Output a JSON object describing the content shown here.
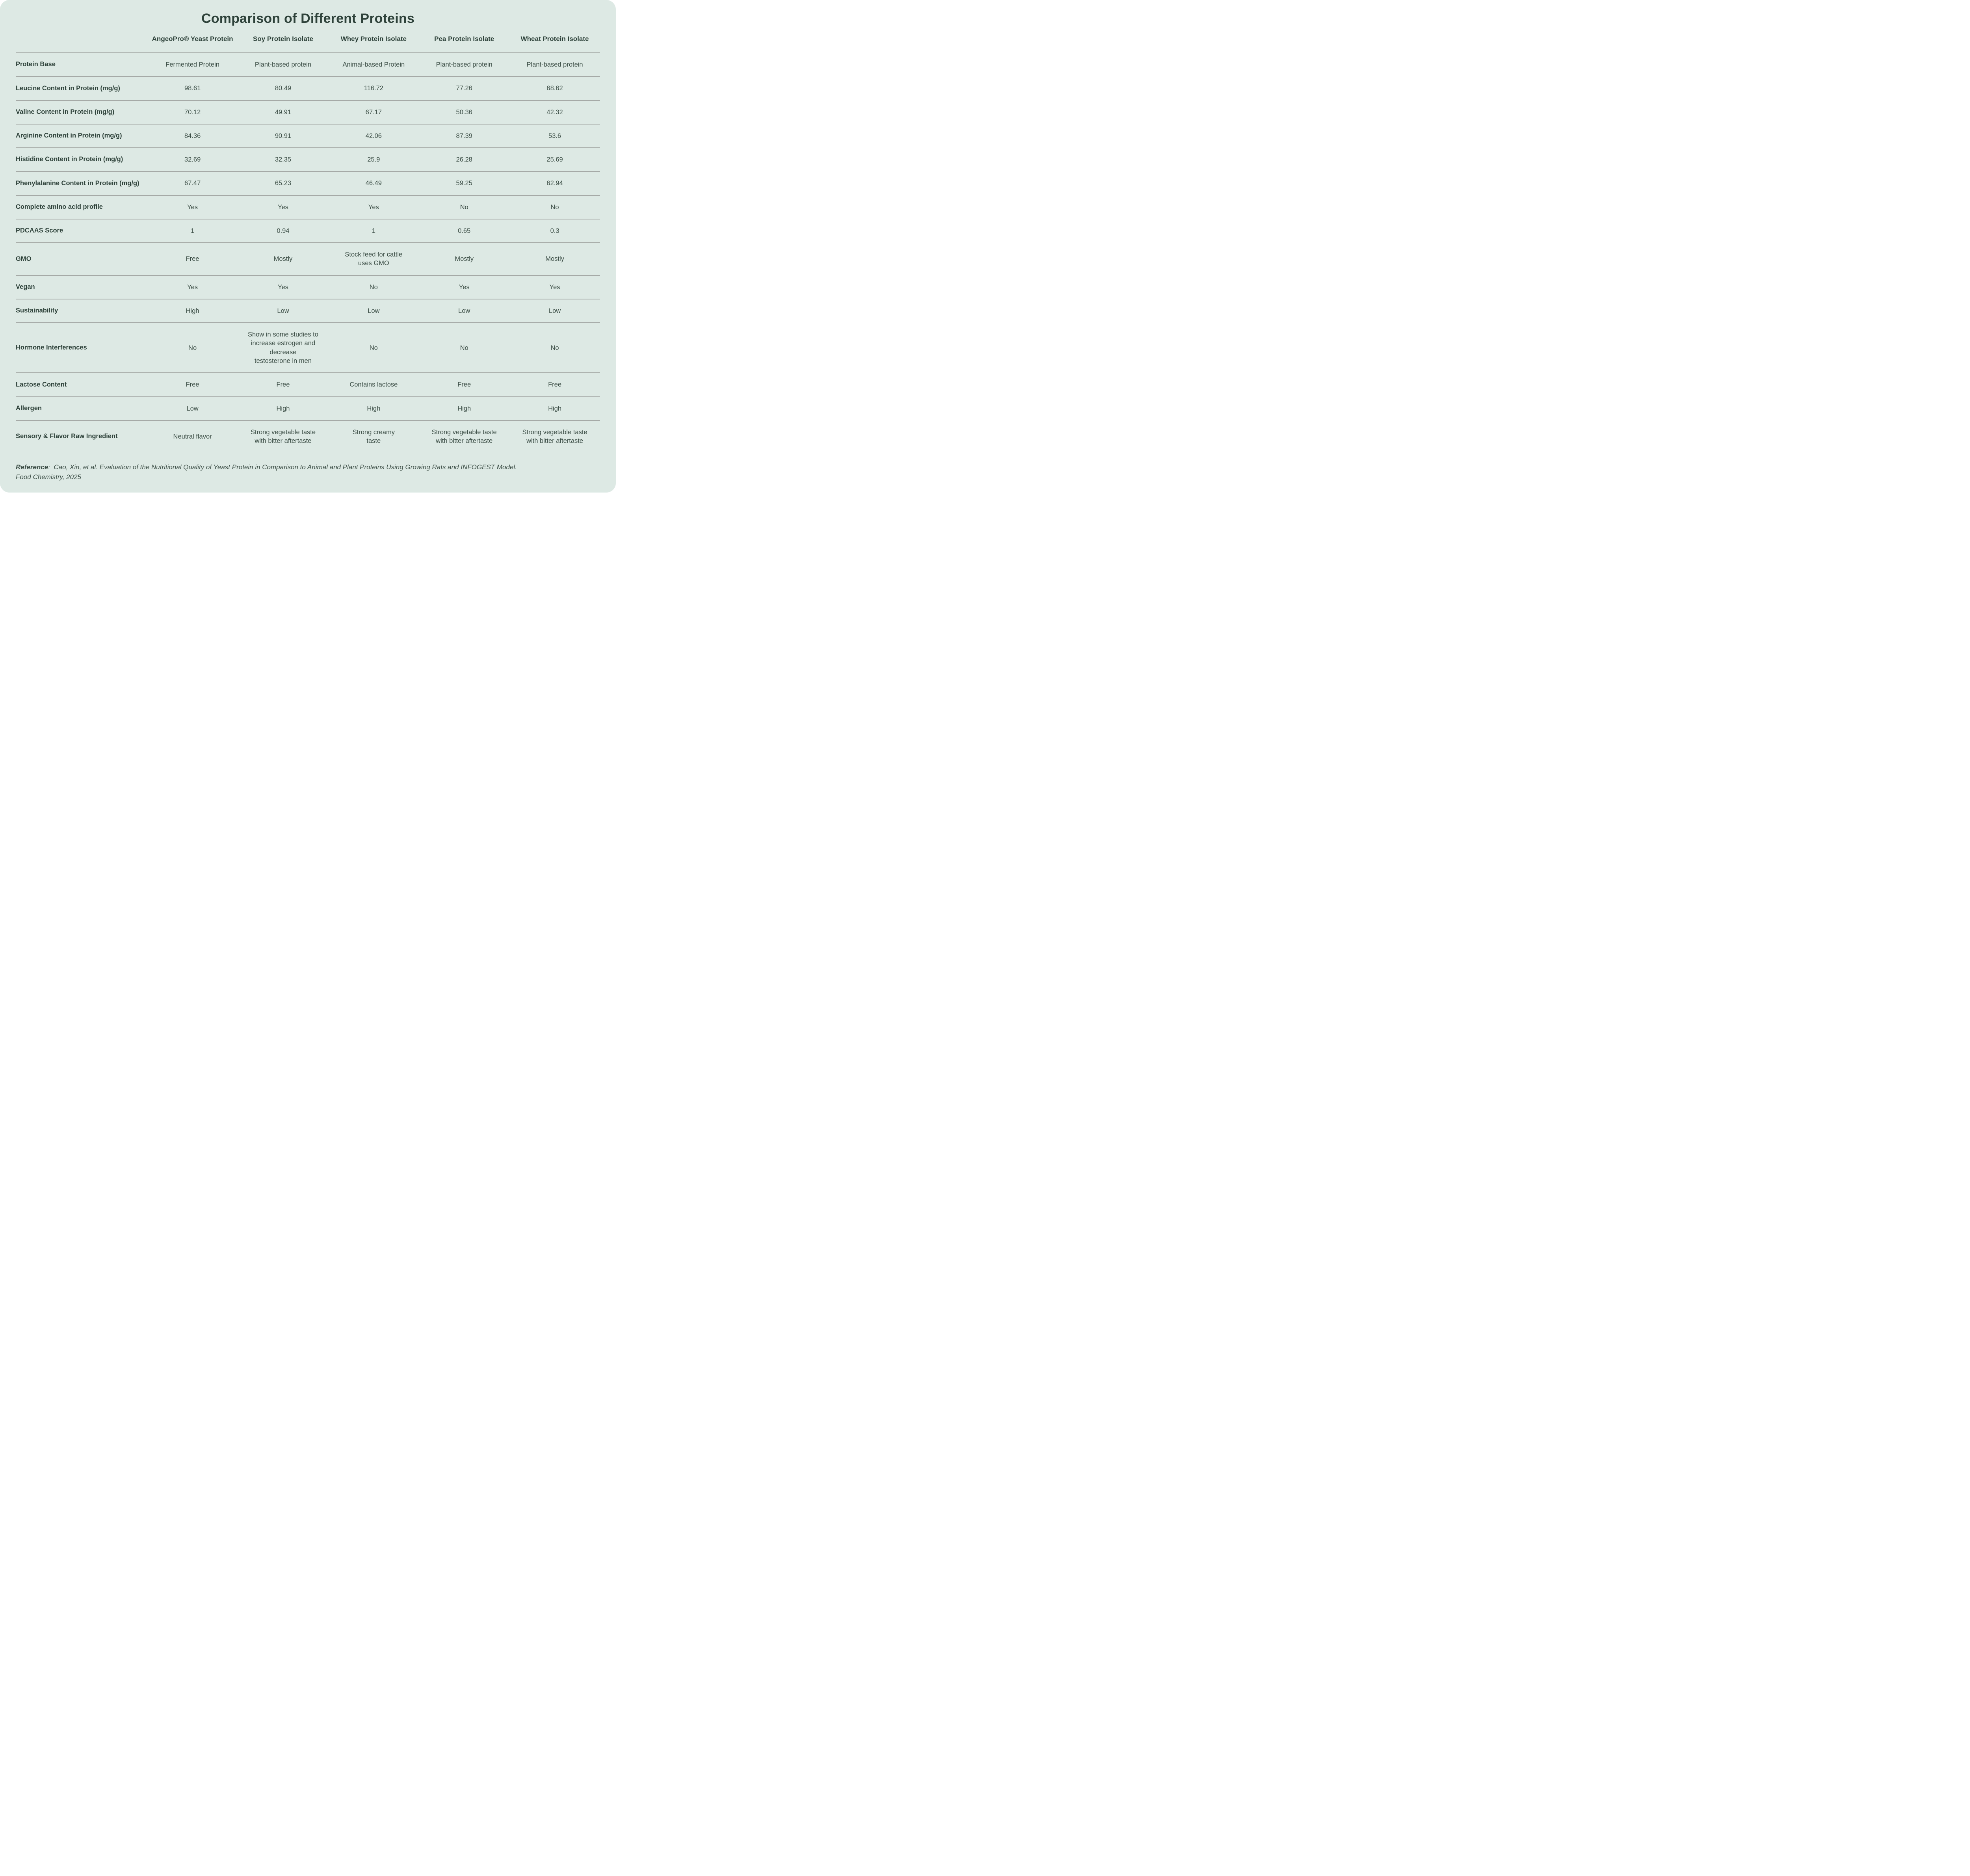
{
  "chart_data": {
    "type": "table",
    "title": "Comparison of Different Proteins",
    "columns": [
      "AngeoPro® Yeast Protein",
      "Soy Protein Isolate",
      "Whey Protein Isolate",
      "Pea Protein Isolate",
      "Wheat Protein Isolate"
    ],
    "rows": [
      {
        "label": "Protein Base",
        "values": [
          "Fermented Protein",
          "Plant-based protein",
          "Animal-based Protein",
          "Plant-based protein",
          "Plant-based protein"
        ]
      },
      {
        "label": "Leucine Content in Protein (mg/g)",
        "values": [
          "98.61",
          "80.49",
          "116.72",
          "77.26",
          "68.62"
        ]
      },
      {
        "label": "Valine Content in Protein (mg/g)",
        "values": [
          "70.12",
          "49.91",
          "67.17",
          "50.36",
          "42.32"
        ]
      },
      {
        "label": "Arginine Content in Protein (mg/g)",
        "values": [
          "84.36",
          "90.91",
          "42.06",
          "87.39",
          "53.6"
        ]
      },
      {
        "label": "Histidine Content in Protein (mg/g)",
        "values": [
          "32.69",
          "32.35",
          "25.9",
          "26.28",
          "25.69"
        ]
      },
      {
        "label": "Phenylalanine Content in Protein (mg/g)",
        "values": [
          "67.47",
          "65.23",
          "46.49",
          "59.25",
          "62.94"
        ]
      },
      {
        "label": "Complete amino acid profile",
        "values": [
          "Yes",
          "Yes",
          "Yes",
          "No",
          "No"
        ]
      },
      {
        "label": "PDCAAS Score",
        "values": [
          "1",
          "0.94",
          "1",
          "0.65",
          "0.3"
        ]
      },
      {
        "label": "GMO",
        "values": [
          "Free",
          "Mostly",
          "Stock feed for cattle\nuses GMO",
          "Mostly",
          "Mostly"
        ]
      },
      {
        "label": "Vegan",
        "values": [
          "Yes",
          "Yes",
          "No",
          "Yes",
          "Yes"
        ]
      },
      {
        "label": "Sustainability",
        "values": [
          "High",
          "Low",
          "Low",
          "Low",
          "Low"
        ]
      },
      {
        "label": "Hormone Interferences",
        "values": [
          "No",
          "Show in some studies to\nincrease estrogen and decrease\ntestosterone in men",
          "No",
          "No",
          "No"
        ]
      },
      {
        "label": "Lactose Content",
        "values": [
          "Free",
          "Free",
          "Contains lactose",
          "Free",
          "Free"
        ]
      },
      {
        "label": "Allergen",
        "values": [
          "Low",
          "High",
          "High",
          "High",
          "High"
        ]
      },
      {
        "label": "Sensory & Flavor Raw Ingredient",
        "values": [
          "Neutral flavor",
          "Strong vegetable taste\nwith bitter aftertaste",
          "Strong creamy\ntaste",
          "Strong vegetable taste\nwith bitter aftertaste",
          "Strong vegetable taste\nwith bitter aftertaste"
        ]
      }
    ]
  },
  "reference": {
    "label": "Reference",
    "separator": ":",
    "text": "Cao, Xin, et al. Evaluation of the Nutritional Quality of Yeast Protein in Comparison to Animal and Plant Proteins Using Growing Rats and INFOGEST Model.\nFood Chemistry, 2025"
  },
  "colors": {
    "bg": "#dde9e4",
    "text": "#3c4e46",
    "heading": "#2e423a",
    "divider": "#a6aaa7",
    "page": "#ffffff"
  }
}
